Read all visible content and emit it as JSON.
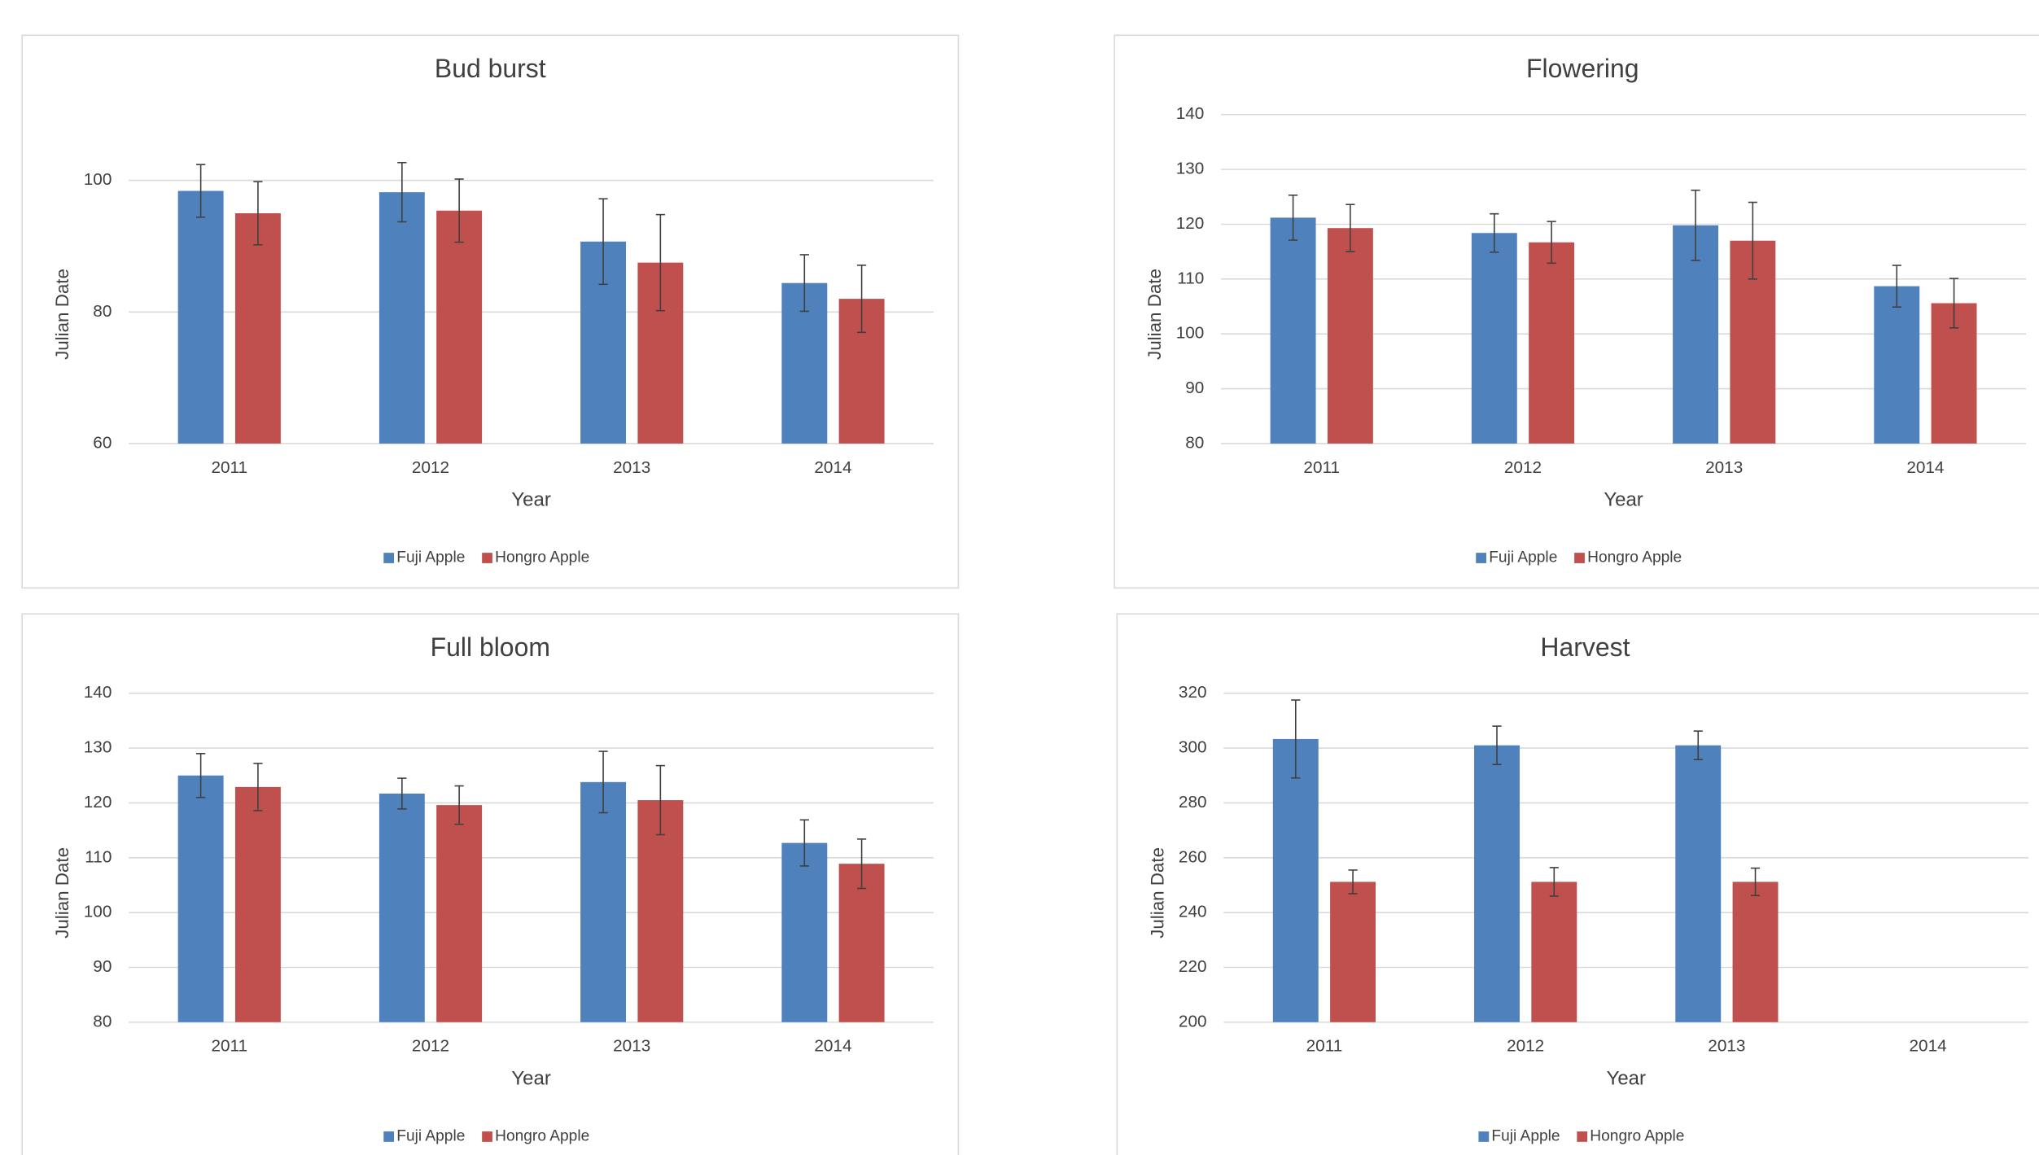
{
  "chart_data": [
    {
      "type": "bar",
      "title": "Bud burst",
      "x_label": "Year",
      "y_label": "Julian Date",
      "categories": [
        "2011",
        "2012",
        "2013",
        "2014"
      ],
      "series": [
        {
          "name": "Fuji Apple",
          "color": "#4f81bd",
          "values": [
            98.4,
            98.2,
            90.7,
            84.4
          ],
          "errors": [
            4.0,
            4.5,
            6.5,
            4.3
          ]
        },
        {
          "name": "Hongro Apple",
          "color": "#c0504d",
          "values": [
            95.0,
            95.4,
            87.5,
            82.0
          ],
          "errors": [
            4.8,
            4.8,
            7.3,
            5.1
          ]
        }
      ],
      "ylim": [
        60,
        110
      ],
      "yticks": [
        60,
        80,
        100
      ],
      "grid": true
    },
    {
      "type": "bar",
      "title": "Flowering",
      "x_label": "Year",
      "y_label": "Julian Date",
      "categories": [
        "2011",
        "2012",
        "2013",
        "2014"
      ],
      "series": [
        {
          "name": "Fuji Apple",
          "color": "#4f81bd",
          "values": [
            121.2,
            118.4,
            119.8,
            108.7
          ],
          "errors": [
            4.1,
            3.5,
            6.4,
            3.8
          ]
        },
        {
          "name": "Hongro Apple",
          "color": "#c0504d",
          "values": [
            119.3,
            116.7,
            117.0,
            105.6
          ],
          "errors": [
            4.3,
            3.8,
            7.0,
            4.5
          ]
        }
      ],
      "ylim": [
        80,
        140
      ],
      "yticks": [
        80,
        90,
        100,
        110,
        120,
        130,
        140
      ],
      "grid": true
    },
    {
      "type": "bar",
      "title": "Full bloom",
      "x_label": "Year",
      "y_label": "Julian Date",
      "categories": [
        "2011",
        "2012",
        "2013",
        "2014"
      ],
      "series": [
        {
          "name": "Fuji Apple",
          "color": "#4f81bd",
          "values": [
            125.0,
            121.7,
            123.8,
            112.7
          ],
          "errors": [
            4.0,
            2.8,
            5.6,
            4.2
          ]
        },
        {
          "name": "Hongro Apple",
          "color": "#c0504d",
          "values": [
            122.9,
            119.6,
            120.5,
            108.9
          ],
          "errors": [
            4.3,
            3.5,
            6.3,
            4.5
          ]
        }
      ],
      "ylim": [
        80,
        140
      ],
      "yticks": [
        80,
        90,
        100,
        110,
        120,
        130,
        140
      ],
      "grid": true
    },
    {
      "type": "bar",
      "title": "Harvest",
      "x_label": "Year",
      "y_label": "Julian Date",
      "categories": [
        "2011",
        "2012",
        "2013",
        "2014"
      ],
      "series": [
        {
          "name": "Fuji Apple",
          "color": "#4f81bd",
          "values": [
            303.3,
            301.0,
            301.0,
            null
          ],
          "errors": [
            14.2,
            7.0,
            5.2,
            null
          ]
        },
        {
          "name": "Hongro Apple",
          "color": "#c0504d",
          "values": [
            251.2,
            251.2,
            251.2,
            null
          ],
          "errors": [
            4.3,
            5.2,
            5.0,
            null
          ]
        }
      ],
      "ylim": [
        200,
        320
      ],
      "yticks": [
        200,
        220,
        240,
        260,
        280,
        300,
        320
      ],
      "grid": true
    }
  ]
}
